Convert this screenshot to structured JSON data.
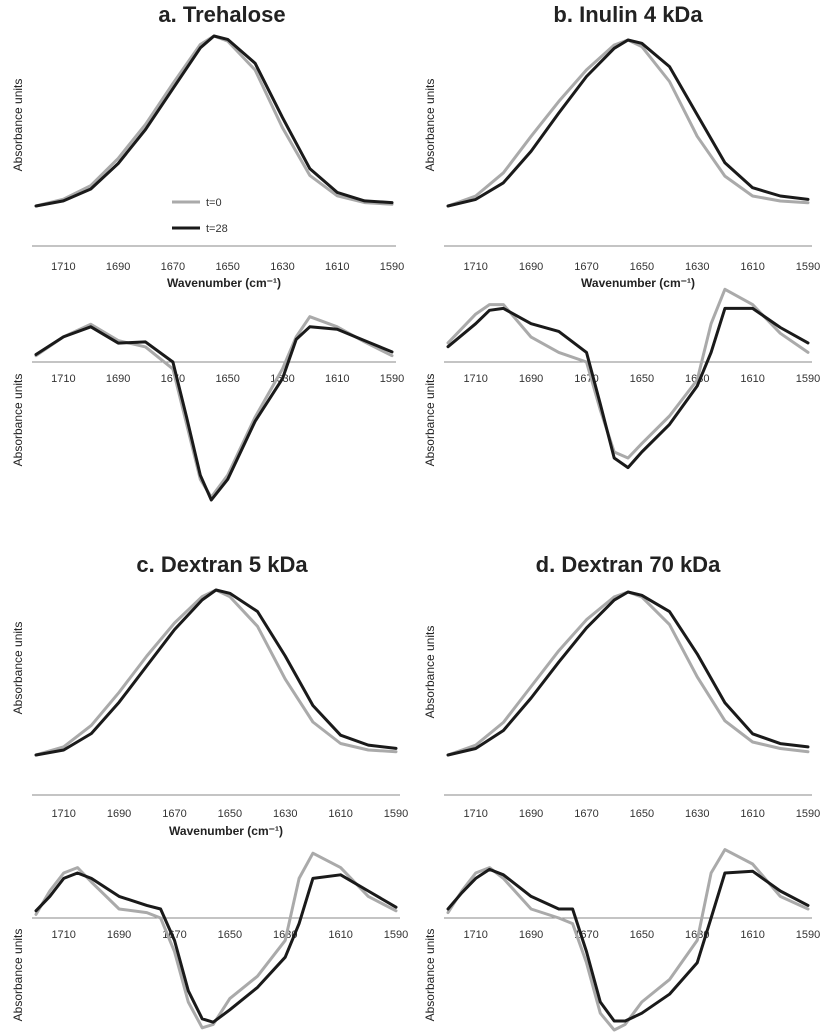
{
  "chart_data": [
    {
      "panel": "a",
      "title": "a. Trehalose",
      "type": "line",
      "x_ticks": [
        1710,
        1690,
        1670,
        1650,
        1630,
        1610,
        1590
      ],
      "xlim": [
        1720,
        1590
      ],
      "legend": [
        {
          "name": "t=0",
          "color": "#aaaaaa"
        },
        {
          "name": "t=28",
          "color": "#1a1a1a"
        }
      ],
      "absorbance": {
        "xlabel": "Wavenumber (cm⁻¹)",
        "ylabel": "Absorbance  units",
        "ylim": [
          0,
          1
        ],
        "series": [
          {
            "name": "t=0",
            "color": "#aaaaaa",
            "x": [
              1720,
              1710,
              1700,
              1690,
              1680,
              1670,
              1660,
              1655,
              1650,
              1640,
              1630,
              1620,
              1610,
              1600,
              1590
            ],
            "y": [
              0.0,
              0.04,
              0.12,
              0.28,
              0.48,
              0.72,
              0.95,
              1.0,
              0.97,
              0.8,
              0.46,
              0.18,
              0.06,
              0.02,
              0.01
            ]
          },
          {
            "name": "t=28",
            "color": "#1a1a1a",
            "x": [
              1720,
              1710,
              1700,
              1690,
              1680,
              1670,
              1660,
              1655,
              1650,
              1640,
              1630,
              1620,
              1610,
              1600,
              1590
            ],
            "y": [
              0.0,
              0.03,
              0.1,
              0.25,
              0.45,
              0.69,
              0.93,
              1.0,
              0.98,
              0.84,
              0.52,
              0.22,
              0.08,
              0.03,
              0.02
            ]
          }
        ]
      },
      "derivative": {
        "ylabel": "Absorbance  units",
        "ylim": [
          -1,
          0.35
        ],
        "series": [
          {
            "name": "t=0",
            "color": "#aaaaaa",
            "x": [
              1720,
              1710,
              1700,
              1690,
              1680,
              1670,
              1665,
              1660,
              1656,
              1650,
              1640,
              1630,
              1625,
              1620,
              1610,
              1600,
              1590
            ],
            "y": [
              0.05,
              0.2,
              0.3,
              0.17,
              0.12,
              -0.05,
              -0.45,
              -0.85,
              -0.98,
              -0.82,
              -0.4,
              -0.05,
              0.2,
              0.36,
              0.28,
              0.16,
              0.05
            ]
          },
          {
            "name": "t=28",
            "color": "#1a1a1a",
            "x": [
              1720,
              1710,
              1700,
              1690,
              1680,
              1670,
              1665,
              1660,
              1656,
              1650,
              1640,
              1630,
              1625,
              1620,
              1610,
              1600,
              1590
            ],
            "y": [
              0.06,
              0.2,
              0.28,
              0.15,
              0.16,
              0.0,
              -0.4,
              -0.82,
              -1.0,
              -0.85,
              -0.43,
              -0.12,
              0.18,
              0.28,
              0.26,
              0.17,
              0.08
            ]
          }
        ]
      }
    },
    {
      "panel": "b",
      "title": "b. Inulin 4 kDa",
      "type": "line",
      "x_ticks": [
        1710,
        1690,
        1670,
        1650,
        1630,
        1610,
        1590
      ],
      "xlim": [
        1720,
        1590
      ],
      "absorbance": {
        "xlabel": "Wavenumber (cm⁻¹)",
        "ylabel": "Absorbance  units",
        "ylim": [
          0,
          1
        ],
        "series": [
          {
            "name": "t=0",
            "color": "#aaaaaa",
            "x": [
              1720,
              1710,
              1700,
              1690,
              1680,
              1670,
              1660,
              1655,
              1650,
              1640,
              1630,
              1620,
              1610,
              1600,
              1590
            ],
            "y": [
              0.0,
              0.06,
              0.2,
              0.42,
              0.63,
              0.82,
              0.97,
              1.0,
              0.96,
              0.75,
              0.42,
              0.18,
              0.06,
              0.03,
              0.02
            ]
          },
          {
            "name": "t=28",
            "color": "#1a1a1a",
            "x": [
              1720,
              1710,
              1700,
              1690,
              1680,
              1670,
              1660,
              1655,
              1650,
              1640,
              1630,
              1620,
              1610,
              1600,
              1590
            ],
            "y": [
              0.0,
              0.04,
              0.14,
              0.33,
              0.56,
              0.78,
              0.95,
              1.0,
              0.98,
              0.84,
              0.55,
              0.26,
              0.11,
              0.06,
              0.04
            ]
          }
        ]
      },
      "derivative": {
        "ylabel": "Absorbance  units",
        "ylim": [
          -1,
          0.35
        ],
        "series": [
          {
            "name": "t=0",
            "color": "#aaaaaa",
            "x": [
              1720,
              1710,
              1705,
              1700,
              1690,
              1680,
              1670,
              1665,
              1660,
              1655,
              1650,
              1640,
              1630,
              1625,
              1620,
              1610,
              1600,
              1590
            ],
            "y": [
              0.1,
              0.25,
              0.3,
              0.3,
              0.13,
              0.05,
              0.0,
              -0.4,
              -0.75,
              -0.8,
              -0.68,
              -0.45,
              -0.15,
              0.2,
              0.38,
              0.3,
              0.15,
              0.05
            ]
          },
          {
            "name": "t=28",
            "color": "#1a1a1a",
            "x": [
              1720,
              1710,
              1705,
              1700,
              1690,
              1680,
              1670,
              1665,
              1660,
              1655,
              1650,
              1640,
              1630,
              1625,
              1620,
              1610,
              1600,
              1590
            ],
            "y": [
              0.08,
              0.2,
              0.27,
              0.28,
              0.2,
              0.16,
              0.05,
              -0.35,
              -0.8,
              -0.88,
              -0.75,
              -0.52,
              -0.2,
              0.05,
              0.28,
              0.28,
              0.18,
              0.1
            ]
          }
        ]
      }
    },
    {
      "panel": "c",
      "title": "c. Dextran 5 kDa",
      "type": "line",
      "x_ticks": [
        1710,
        1690,
        1670,
        1650,
        1630,
        1610,
        1590
      ],
      "xlim": [
        1720,
        1590
      ],
      "absorbance": {
        "xlabel": "Wavenumber (cm⁻¹)",
        "ylabel": "Absorbance  units",
        "ylim": [
          0,
          1
        ],
        "series": [
          {
            "name": "t=0",
            "color": "#aaaaaa",
            "x": [
              1720,
              1710,
              1700,
              1690,
              1680,
              1670,
              1660,
              1655,
              1650,
              1640,
              1630,
              1620,
              1610,
              1600,
              1590
            ],
            "y": [
              0.0,
              0.05,
              0.18,
              0.38,
              0.6,
              0.8,
              0.96,
              1.0,
              0.96,
              0.78,
              0.46,
              0.2,
              0.07,
              0.03,
              0.02
            ]
          },
          {
            "name": "t=28",
            "color": "#1a1a1a",
            "x": [
              1720,
              1710,
              1700,
              1690,
              1680,
              1670,
              1660,
              1655,
              1650,
              1640,
              1630,
              1620,
              1610,
              1600,
              1590
            ],
            "y": [
              0.0,
              0.03,
              0.13,
              0.32,
              0.54,
              0.76,
              0.94,
              1.0,
              0.98,
              0.87,
              0.6,
              0.3,
              0.12,
              0.06,
              0.04
            ]
          }
        ]
      },
      "derivative": {
        "ylabel": "Absorbance  units",
        "ylim": [
          -1,
          0.35
        ],
        "series": [
          {
            "name": "t=0",
            "color": "#aaaaaa",
            "x": [
              1720,
              1715,
              1710,
              1705,
              1700,
              1690,
              1680,
              1675,
              1670,
              1665,
              1660,
              1656,
              1650,
              1640,
              1630,
              1625,
              1620,
              1610,
              1600,
              1590
            ],
            "y": [
              0.02,
              0.15,
              0.25,
              0.28,
              0.2,
              0.05,
              0.03,
              0.0,
              -0.3,
              -0.75,
              -0.98,
              -0.95,
              -0.72,
              -0.52,
              -0.2,
              0.22,
              0.36,
              0.28,
              0.12,
              0.04
            ]
          },
          {
            "name": "t=28",
            "color": "#1a1a1a",
            "x": [
              1720,
              1715,
              1710,
              1705,
              1700,
              1690,
              1680,
              1675,
              1670,
              1665,
              1660,
              1656,
              1650,
              1640,
              1630,
              1625,
              1620,
              1610,
              1600,
              1590
            ],
            "y": [
              0.04,
              0.12,
              0.22,
              0.25,
              0.22,
              0.12,
              0.07,
              0.05,
              -0.2,
              -0.65,
              -0.9,
              -0.93,
              -0.82,
              -0.62,
              -0.35,
              -0.05,
              0.22,
              0.24,
              0.15,
              0.06
            ]
          }
        ]
      }
    },
    {
      "panel": "d",
      "title": "d. Dextran 70 kDa",
      "type": "line",
      "x_ticks": [
        1710,
        1690,
        1670,
        1650,
        1630,
        1610,
        1590
      ],
      "xlim": [
        1720,
        1590
      ],
      "absorbance": {
        "xlabel": "",
        "ylabel": "Absorbance  units",
        "ylim": [
          0,
          1
        ],
        "series": [
          {
            "name": "t=0",
            "color": "#aaaaaa",
            "x": [
              1720,
              1710,
              1700,
              1690,
              1680,
              1670,
              1660,
              1655,
              1650,
              1640,
              1630,
              1620,
              1610,
              1600,
              1590
            ],
            "y": [
              0.0,
              0.06,
              0.2,
              0.42,
              0.64,
              0.83,
              0.97,
              1.0,
              0.97,
              0.8,
              0.48,
              0.21,
              0.08,
              0.04,
              0.02
            ]
          },
          {
            "name": "t=28",
            "color": "#1a1a1a",
            "x": [
              1720,
              1710,
              1700,
              1690,
              1680,
              1670,
              1660,
              1655,
              1650,
              1640,
              1630,
              1620,
              1610,
              1600,
              1590
            ],
            "y": [
              0.0,
              0.04,
              0.15,
              0.35,
              0.57,
              0.78,
              0.95,
              1.0,
              0.98,
              0.88,
              0.62,
              0.32,
              0.13,
              0.07,
              0.05
            ]
          }
        ]
      },
      "derivative": {
        "ylabel": "Absorbance  units",
        "ylim": [
          -1,
          0.35
        ],
        "series": [
          {
            "name": "t=0",
            "color": "#aaaaaa",
            "x": [
              1720,
              1715,
              1710,
              1705,
              1700,
              1690,
              1680,
              1675,
              1670,
              1665,
              1660,
              1656,
              1650,
              1640,
              1630,
              1625,
              1620,
              1610,
              1600,
              1590
            ],
            "y": [
              0.03,
              0.15,
              0.25,
              0.28,
              0.22,
              0.05,
              0.0,
              -0.05,
              -0.4,
              -0.85,
              -1.0,
              -0.95,
              -0.75,
              -0.55,
              -0.2,
              0.25,
              0.38,
              0.3,
              0.12,
              0.05
            ]
          },
          {
            "name": "t=28",
            "color": "#1a1a1a",
            "x": [
              1720,
              1715,
              1710,
              1705,
              1700,
              1690,
              1680,
              1675,
              1670,
              1665,
              1660,
              1656,
              1650,
              1640,
              1630,
              1625,
              1620,
              1610,
              1600,
              1590
            ],
            "y": [
              0.05,
              0.14,
              0.22,
              0.27,
              0.24,
              0.12,
              0.05,
              0.05,
              -0.3,
              -0.75,
              -0.92,
              -0.92,
              -0.85,
              -0.68,
              -0.4,
              0.0,
              0.25,
              0.26,
              0.15,
              0.07
            ]
          }
        ]
      }
    }
  ]
}
